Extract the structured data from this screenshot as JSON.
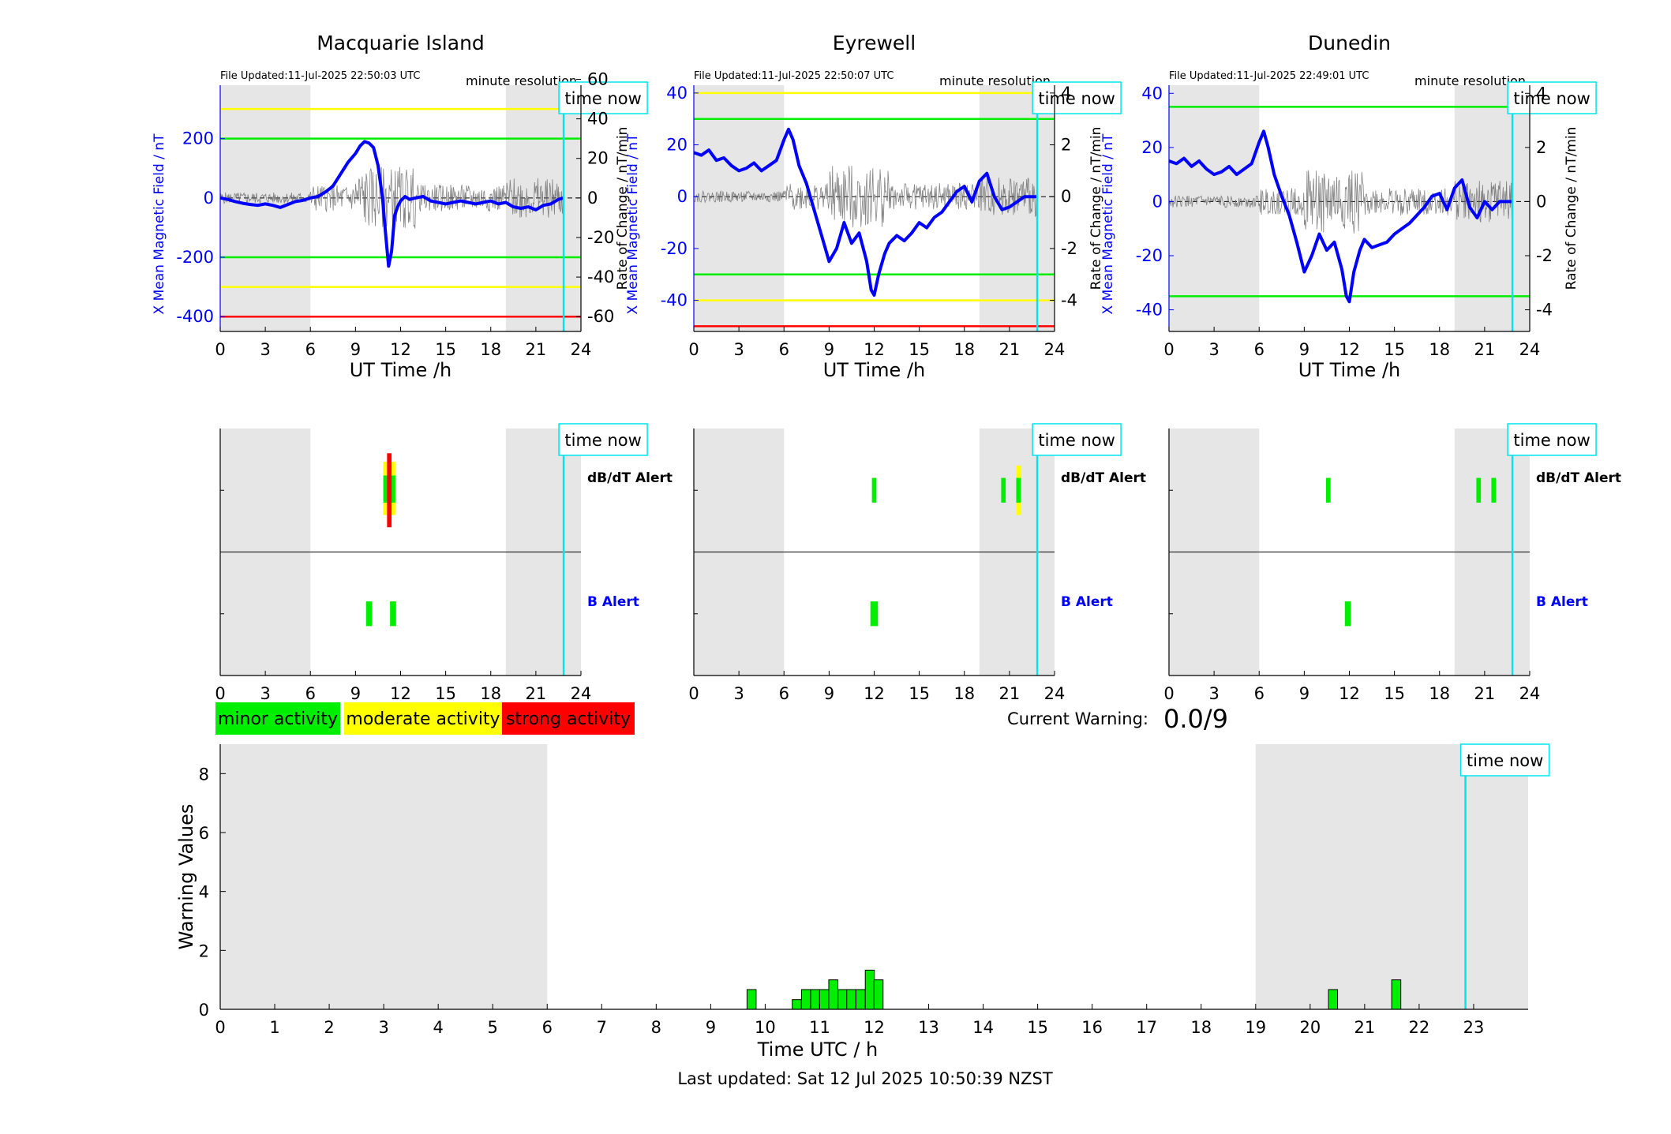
{
  "legend": {
    "minor": "minor activity",
    "moderate": "moderate activity",
    "strong": "strong activity",
    "colors": {
      "minor": "#00ee00",
      "moderate": "#ffff00",
      "strong": "#ff0000"
    }
  },
  "current_warning": {
    "label": "Current Warning:",
    "value": "0.0/9"
  },
  "footer": {
    "last_updated": "Last updated: Sat 12 Jul 2025 10:50:39 NZST"
  },
  "colors": {
    "shade": "#e6e6e6",
    "field_line": "#0000ff",
    "timenow": "#00e5ee",
    "green": "#00ee00",
    "yellow": "#ffff00",
    "red": "#ff0000",
    "axis_blue": "#0000ff"
  },
  "common": {
    "minute_resolution": "minute resolution",
    "time_now": "time now",
    "x_label": "UT Time /h",
    "y_left_label": "X Mean Magnetic Field / nT",
    "y_right_label": "Rate of Change / nT/min",
    "dbdt_label": "dB/dT Alert",
    "b_label": "B Alert",
    "x_ticks": [
      "0",
      "3",
      "6",
      "9",
      "12",
      "15",
      "18",
      "21",
      "24"
    ]
  },
  "stations": [
    {
      "name": "Macquarie Island",
      "file_updated": "File Updated:11-Jul-2025 22:50:03 UTC",
      "y_left_ticks": [
        "200",
        "0",
        "-200",
        "-400"
      ],
      "y_right_ticks": [
        "60",
        "40",
        "20",
        "0",
        "-20",
        "-40",
        "-60"
      ]
    },
    {
      "name": "Eyrewell",
      "file_updated": "File Updated:11-Jul-2025 22:50:07 UTC",
      "y_left_ticks": [
        "40",
        "20",
        "0",
        "-20",
        "-40"
      ],
      "y_right_ticks": [
        "4",
        "2",
        "0",
        "-2",
        "-4"
      ]
    },
    {
      "name": "Dunedin",
      "file_updated": "File Updated:11-Jul-2025 22:49:01 UTC",
      "y_left_ticks": [
        "40",
        "20",
        "0",
        "-20",
        "-40"
      ],
      "y_right_ticks": [
        "4",
        "2",
        "0",
        "-2",
        "-4"
      ]
    }
  ],
  "chart_data": [
    {
      "type": "line",
      "title": "Macquarie Island",
      "xlabel": "UT Time /h",
      "ylabel": "X Mean Magnetic Field / nT",
      "y2label": "Rate of Change / nT/min",
      "xlim": [
        0,
        24
      ],
      "ylim": [
        -450,
        380
      ],
      "y2lim": [
        -67.5,
        57
      ],
      "shaded_x": [
        [
          0,
          6
        ],
        [
          19,
          24
        ]
      ],
      "time_now": 22.85,
      "thresholds": [
        {
          "y": 300,
          "color": "yellow"
        },
        {
          "y": 200,
          "color": "green"
        },
        {
          "y": -200,
          "color": "green"
        },
        {
          "y": -300,
          "color": "yellow"
        },
        {
          "y": -400,
          "color": "red"
        }
      ],
      "series": [
        {
          "values_x": [
            0,
            0.5,
            1,
            1.5,
            2,
            2.5,
            3,
            3.5,
            4,
            4.5,
            5,
            5.5,
            6,
            6.5,
            7,
            7.5,
            8,
            8.5,
            9,
            9.3,
            9.6,
            9.9,
            10.2,
            10.5,
            10.8,
            11,
            11.2,
            11.4,
            11.6,
            11.8,
            12,
            12.3,
            12.6,
            13,
            13.5,
            14,
            14.5,
            15,
            15.5,
            16,
            16.5,
            17,
            17.5,
            18,
            18.5,
            19,
            19.5,
            20,
            20.5,
            21,
            21.5,
            22,
            22.5,
            22.85
          ],
          "values_y": [
            0,
            -5,
            -12,
            -18,
            -22,
            -25,
            -20,
            -25,
            -32,
            -22,
            -12,
            -8,
            0,
            5,
            20,
            40,
            80,
            120,
            150,
            175,
            190,
            185,
            170,
            110,
            0,
            -120,
            -230,
            -180,
            -60,
            -30,
            -10,
            5,
            -5,
            0,
            5,
            -10,
            -15,
            -20,
            -15,
            -10,
            -15,
            -20,
            -15,
            -10,
            -20,
            -15,
            -30,
            -35,
            -30,
            -40,
            -25,
            -20,
            -5,
            0
          ]
        }
      ]
    },
    {
      "type": "line",
      "title": "Eyrewell",
      "xlabel": "UT Time /h",
      "ylabel": "X Mean Magnetic Field / nT",
      "y2label": "Rate of Change / nT/min",
      "xlim": [
        0,
        24
      ],
      "ylim": [
        -52,
        43
      ],
      "y2lim": [
        -5.2,
        4.3
      ],
      "shaded_x": [
        [
          0,
          6
        ],
        [
          19,
          24
        ]
      ],
      "time_now": 22.85,
      "thresholds": [
        {
          "y": 40,
          "color": "yellow"
        },
        {
          "y": 30,
          "color": "green"
        },
        {
          "y": -30,
          "color": "green"
        },
        {
          "y": -40,
          "color": "yellow"
        },
        {
          "y": -50,
          "color": "red"
        }
      ],
      "series": [
        {
          "values_x": [
            0,
            0.5,
            1,
            1.5,
            2,
            2.5,
            3,
            3.5,
            4,
            4.5,
            5,
            5.5,
            6,
            6.3,
            6.6,
            7,
            7.5,
            8,
            8.5,
            9,
            9.5,
            10,
            10.5,
            11,
            11.5,
            11.8,
            12,
            12.3,
            12.7,
            13,
            13.5,
            14,
            14.5,
            15,
            15.5,
            16,
            16.5,
            17,
            17.5,
            18,
            18.5,
            19,
            19.5,
            20,
            20.5,
            21,
            21.5,
            22,
            22.5,
            22.85
          ],
          "values_y": [
            17,
            16,
            18,
            14,
            15,
            12,
            10,
            11,
            13,
            10,
            12,
            14,
            22,
            26,
            22,
            12,
            5,
            -5,
            -15,
            -25,
            -20,
            -10,
            -18,
            -14,
            -25,
            -36,
            -38,
            -30,
            -22,
            -18,
            -15,
            -17,
            -14,
            -10,
            -12,
            -8,
            -6,
            -2,
            2,
            4,
            -2,
            6,
            9,
            0,
            -5,
            -4,
            -2,
            0,
            0,
            0
          ]
        }
      ]
    },
    {
      "type": "line",
      "title": "Dunedin",
      "xlabel": "UT Time /h",
      "ylabel": "X Mean Magnetic Field / nT",
      "y2label": "Rate of Change / nT/min",
      "xlim": [
        0,
        24
      ],
      "ylim": [
        -48,
        43
      ],
      "y2lim": [
        -4.8,
        4.3
      ],
      "shaded_x": [
        [
          0,
          6
        ],
        [
          19,
          24
        ]
      ],
      "time_now": 22.85,
      "thresholds": [
        {
          "y": 35,
          "color": "green"
        },
        {
          "y": -35,
          "color": "green"
        }
      ],
      "series": [
        {
          "values_x": [
            0,
            0.5,
            1,
            1.5,
            2,
            2.5,
            3,
            3.5,
            4,
            4.5,
            5,
            5.5,
            6,
            6.3,
            6.6,
            7,
            7.5,
            8,
            8.5,
            9,
            9.5,
            10,
            10.5,
            11,
            11.5,
            11.8,
            12,
            12.3,
            12.7,
            13,
            13.5,
            14,
            14.5,
            15,
            15.5,
            16,
            16.5,
            17,
            17.5,
            18,
            18.5,
            19,
            19.5,
            20,
            20.5,
            21,
            21.5,
            22,
            22.5,
            22.85
          ],
          "values_y": [
            15,
            14,
            16,
            13,
            15,
            12,
            10,
            11,
            13,
            10,
            12,
            14,
            22,
            26,
            20,
            10,
            2,
            -5,
            -15,
            -26,
            -20,
            -12,
            -18,
            -15,
            -25,
            -35,
            -37,
            -26,
            -18,
            -14,
            -17,
            -16,
            -15,
            -12,
            -10,
            -8,
            -5,
            -2,
            2,
            3,
            -3,
            5,
            8,
            -2,
            -6,
            0,
            -3,
            0,
            0,
            0
          ]
        }
      ]
    },
    {
      "type": "bar",
      "title": "",
      "xlabel": "Time UTC / h",
      "ylabel": "Warning Values",
      "xlim": [
        0,
        24
      ],
      "ylim": [
        0,
        9
      ],
      "x_ticks": [
        "0",
        "1",
        "2",
        "3",
        "4",
        "5",
        "6",
        "7",
        "8",
        "9",
        "10",
        "11",
        "12",
        "13",
        "14",
        "15",
        "16",
        "17",
        "18",
        "19",
        "20",
        "21",
        "22",
        "23"
      ],
      "y_ticks": [
        "0",
        "2",
        "4",
        "6",
        "8"
      ],
      "shaded_x": [
        [
          0,
          6
        ],
        [
          19,
          24
        ]
      ],
      "time_now": 22.85,
      "bar_width_h": 0.1667,
      "x": [
        9.75,
        10.58,
        10.75,
        10.92,
        11.08,
        11.25,
        11.42,
        11.58,
        11.75,
        11.92,
        12.08,
        20.42,
        21.58
      ],
      "values": [
        0.67,
        0.33,
        0.67,
        0.67,
        0.67,
        1.0,
        0.67,
        0.67,
        0.67,
        1.33,
        1.0,
        0.67,
        1.0
      ]
    }
  ],
  "alerts": [
    {
      "station": "Macquarie Island",
      "dbdt": [
        {
          "x": 11.25,
          "y0": 0.3,
          "y1": 0.73,
          "color": "yellow",
          "w": 0.8
        },
        {
          "x": 11.25,
          "y0": 0.4,
          "y1": 0.62,
          "color": "green",
          "w": 0.8
        },
        {
          "x": 11.25,
          "y0": 0.2,
          "y1": 0.8,
          "color": "red",
          "w": 0.3
        }
      ],
      "b": [
        {
          "x": 9.9,
          "y0": 0.4,
          "y1": 0.6,
          "color": "green",
          "w": 0.4
        },
        {
          "x": 11.5,
          "y0": 0.4,
          "y1": 0.6,
          "color": "green",
          "w": 0.4
        }
      ]
    },
    {
      "station": "Eyrewell",
      "dbdt": [
        {
          "x": 12.0,
          "y0": 0.4,
          "y1": 0.6,
          "color": "green",
          "w": 0.3
        },
        {
          "x": 20.6,
          "y0": 0.4,
          "y1": 0.6,
          "color": "green",
          "w": 0.3
        },
        {
          "x": 21.6,
          "y0": 0.3,
          "y1": 0.7,
          "color": "yellow",
          "w": 0.3
        },
        {
          "x": 21.6,
          "y0": 0.4,
          "y1": 0.6,
          "color": "green",
          "w": 0.3
        }
      ],
      "b": [
        {
          "x": 12.0,
          "y0": 0.4,
          "y1": 0.6,
          "color": "green",
          "w": 0.5
        }
      ]
    },
    {
      "station": "Dunedin",
      "dbdt": [
        {
          "x": 10.6,
          "y0": 0.4,
          "y1": 0.6,
          "color": "green",
          "w": 0.3
        },
        {
          "x": 20.6,
          "y0": 0.4,
          "y1": 0.6,
          "color": "green",
          "w": 0.3
        },
        {
          "x": 21.6,
          "y0": 0.4,
          "y1": 0.6,
          "color": "green",
          "w": 0.3
        }
      ],
      "b": [
        {
          "x": 11.9,
          "y0": 0.4,
          "y1": 0.6,
          "color": "green",
          "w": 0.4
        }
      ]
    }
  ]
}
